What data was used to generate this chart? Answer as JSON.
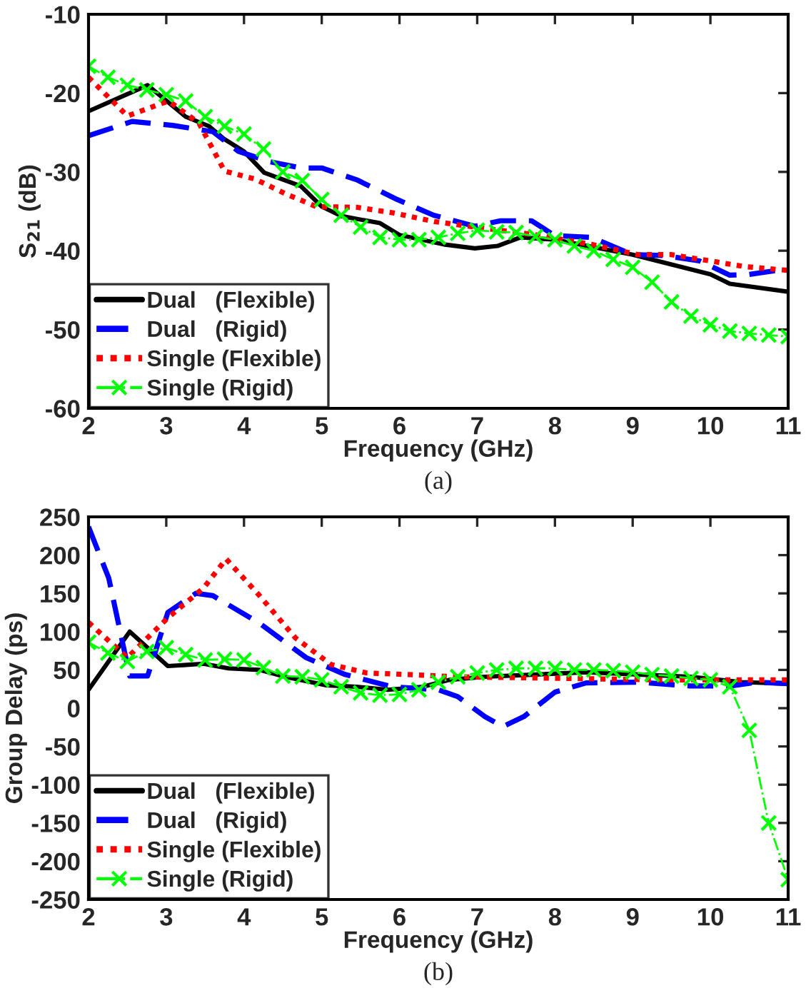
{
  "chart_data": [
    {
      "type": "line",
      "xlabel": "Frequency (GHz)",
      "ylabel": "S$_{21}$ (dB)",
      "xlim": [
        2,
        11
      ],
      "ylim": [
        -60,
        -10
      ],
      "xticks": [
        2,
        3,
        4,
        5,
        6,
        7,
        8,
        9,
        10,
        11
      ],
      "yticks": [
        -60,
        -50,
        -40,
        -30,
        -20,
        -10
      ],
      "grid": false,
      "legend": "bottom left",
      "annotations": [
        "(a)"
      ],
      "series": [
        {
          "name": "Dual   (Flexible)",
          "color": "#000000",
          "line_style": "solid",
          "marker": "none",
          "x": [
            2,
            2.76,
            3.25,
            3.55,
            3.74,
            4.0,
            4.26,
            4.73,
            5.0,
            5.25,
            5.75,
            6.0,
            6.57,
            6.97,
            7.26,
            7.56,
            8.0,
            9.0,
            10.0,
            10.25,
            11
          ],
          "values": [
            -22.3,
            -19.0,
            -23.0,
            -24.2,
            -25.8,
            -27.4,
            -30.1,
            -31.8,
            -34.4,
            -35.6,
            -36.5,
            -38.0,
            -39.2,
            -39.7,
            -39.4,
            -38.3,
            -38.6,
            -40.5,
            -43.0,
            -44.2,
            -45.2
          ]
        },
        {
          "name": "Dual   (Rigid)",
          "color": "#0000ff",
          "line_style": "dashed",
          "marker": "none",
          "x": [
            2,
            2.56,
            3.08,
            3.6,
            3.93,
            4.33,
            4.73,
            5.0,
            5.45,
            5.97,
            6.44,
            6.97,
            7.3,
            7.7,
            8.0,
            8.47,
            9.0,
            9.4,
            9.86,
            10.25,
            10.5,
            11
          ],
          "values": [
            -25.4,
            -23.6,
            -24.1,
            -24.9,
            -27.4,
            -28.7,
            -29.5,
            -29.5,
            -31.0,
            -33.5,
            -35.5,
            -36.9,
            -36.2,
            -36.2,
            -38.1,
            -38.3,
            -40.5,
            -40.6,
            -41.3,
            -43.1,
            -43.0,
            -42.3
          ]
        },
        {
          "name": "Single (Flexible)",
          "color": "#ff0000",
          "line_style": "dotted",
          "marker": "none",
          "x": [
            2,
            2.5,
            3.03,
            3.42,
            3.75,
            4.14,
            4.54,
            4.93,
            5.46,
            5.92,
            6.45,
            6.97,
            7.76,
            8.47,
            9.07,
            9.5,
            10.0,
            10.43,
            11
          ],
          "values": [
            -18.0,
            -22.9,
            -21.0,
            -23.8,
            -29.9,
            -30.9,
            -32.8,
            -34.4,
            -34.5,
            -35.2,
            -36.3,
            -37.0,
            -38.0,
            -39.2,
            -40.5,
            -40.5,
            -41.3,
            -42.0,
            -42.5
          ]
        },
        {
          "name": "Single (Rigid)",
          "color": "#00ff00",
          "line_style": "dashdot",
          "marker": "cross",
          "x": [
            2,
            2.25,
            2.5,
            2.75,
            3,
            3.25,
            3.5,
            3.75,
            4,
            4.25,
            4.5,
            4.75,
            5,
            5.25,
            5.5,
            5.75,
            6,
            6.25,
            6.5,
            6.75,
            7,
            7.25,
            7.5,
            7.75,
            8,
            8.25,
            8.5,
            8.75,
            9,
            9.25,
            9.5,
            9.75,
            10,
            10.25,
            10.5,
            10.75,
            11
          ],
          "values": [
            -16.6,
            -18.0,
            -19.0,
            -19.6,
            -20.2,
            -21.0,
            -23.0,
            -24.2,
            -25.2,
            -27.1,
            -30.0,
            -31.1,
            -33.5,
            -35.5,
            -37.0,
            -38.3,
            -38.6,
            -38.6,
            -38.3,
            -37.8,
            -37.4,
            -37.6,
            -37.7,
            -38.2,
            -38.6,
            -39.4,
            -40.0,
            -41.1,
            -42.1,
            -44.0,
            -46.5,
            -48.3,
            -49.4,
            -50.2,
            -50.5,
            -50.7,
            -50.9
          ]
        }
      ]
    },
    {
      "type": "line",
      "xlabel": "Frequency (GHz)",
      "ylabel": "Group Delay (ps)",
      "xlim": [
        2,
        11
      ],
      "ylim": [
        -250,
        250
      ],
      "xticks": [
        2,
        3,
        4,
        5,
        6,
        7,
        8,
        9,
        10,
        11
      ],
      "yticks": [
        -250,
        -200,
        -150,
        -100,
        -50,
        0,
        50,
        100,
        150,
        200,
        250
      ],
      "grid": false,
      "legend": "bottom left",
      "annotations": [
        "(b)"
      ],
      "series": [
        {
          "name": "Dual   (Flexible)",
          "color": "#000000",
          "line_style": "solid",
          "marker": "none",
          "x": [
            2,
            2.53,
            3.02,
            3.48,
            3.8,
            4.2,
            4.53,
            5.05,
            5.45,
            5.85,
            6.3,
            6.64,
            7.1,
            7.76,
            8.4,
            9.08,
            9.74,
            10.4,
            11
          ],
          "values": [
            24,
            100,
            55,
            58,
            52,
            50,
            41,
            30,
            28,
            24,
            28,
            37,
            41,
            44,
            47,
            44,
            41,
            34,
            32
          ]
        },
        {
          "name": "Dual   (Rigid)",
          "color": "#0000ff",
          "line_style": "dashed",
          "marker": "none",
          "x": [
            2,
            2.26,
            2.53,
            2.76,
            3.02,
            3.38,
            3.6,
            4.2,
            4.8,
            5.3,
            5.9,
            6.5,
            6.75,
            7.1,
            7.33,
            7.6,
            8.0,
            8.4,
            9.08,
            9.74,
            10.26,
            10.6,
            11
          ],
          "values": [
            237,
            170,
            42,
            42,
            125,
            150,
            147,
            111,
            66,
            44,
            28,
            24,
            15,
            -11,
            -24,
            -11,
            21,
            33,
            34,
            29,
            29,
            34,
            32
          ]
        },
        {
          "name": "Single (Flexible)",
          "color": "#ff0000",
          "line_style": "dotted",
          "marker": "none",
          "x": [
            2,
            2.5,
            3.02,
            3.48,
            3.77,
            4.2,
            4.66,
            5.12,
            5.58,
            6.1,
            6.75,
            8.06,
            9.38,
            11
          ],
          "values": [
            112,
            66,
            118,
            157,
            195,
            147,
            92,
            57,
            46,
            44,
            41,
            39,
            37,
            37
          ]
        },
        {
          "name": "Single (Rigid)",
          "color": "#00ff00",
          "line_style": "dashdot",
          "marker": "cross",
          "x": [
            2,
            2.25,
            2.5,
            2.75,
            3,
            3.25,
            3.5,
            3.75,
            4,
            4.25,
            4.5,
            4.75,
            5,
            5.25,
            5.5,
            5.75,
            6,
            6.25,
            6.5,
            6.75,
            7,
            7.25,
            7.5,
            7.75,
            8,
            8.25,
            8.5,
            8.75,
            9,
            9.25,
            9.5,
            9.75,
            10,
            10.25,
            10.5,
            10.75,
            11
          ],
          "values": [
            86,
            72,
            61,
            74,
            79,
            70,
            63,
            64,
            63,
            53,
            42,
            41,
            37,
            28,
            20,
            17,
            18,
            24,
            34,
            41,
            46,
            50,
            52,
            52,
            52,
            50,
            50,
            49,
            47,
            44,
            42,
            39,
            37,
            28,
            -29,
            -150,
            -224
          ]
        }
      ]
    }
  ]
}
